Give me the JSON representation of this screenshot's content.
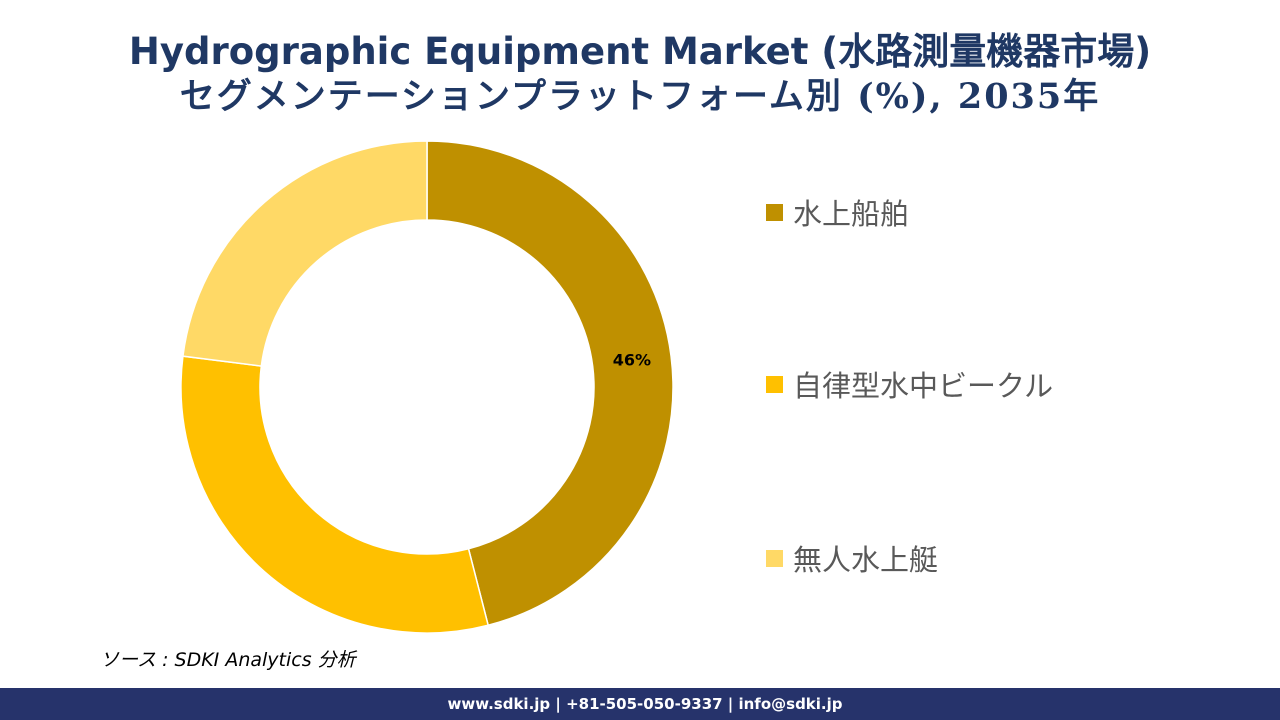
{
  "title": {
    "line1": "Hydrographic Equipment Market (水路測量機器市場)",
    "line2": "セグメンテーションプラットフォーム別 (%), 2035年"
  },
  "chart_data": {
    "type": "pie",
    "donut": true,
    "categories": [
      "水上船舶",
      "自律型水中ビークル",
      "無人水上艇"
    ],
    "values": [
      46,
      31,
      23
    ],
    "data_labels": [
      "46%",
      "",
      ""
    ],
    "colors": [
      "#bf9000",
      "#ffc000",
      "#ffd966"
    ],
    "legend_position": "right"
  },
  "legend": {
    "items": [
      {
        "label": "水上船舶",
        "color": "#bf9000"
      },
      {
        "label": "自律型水中ビークル",
        "color": "#ffc000"
      },
      {
        "label": "無人水上艇",
        "color": "#ffd966"
      }
    ]
  },
  "source": "ソース : SDKI Analytics 分析",
  "footer": "www.sdki.jp | +81-505-050-9337 | info@sdki.jp"
}
